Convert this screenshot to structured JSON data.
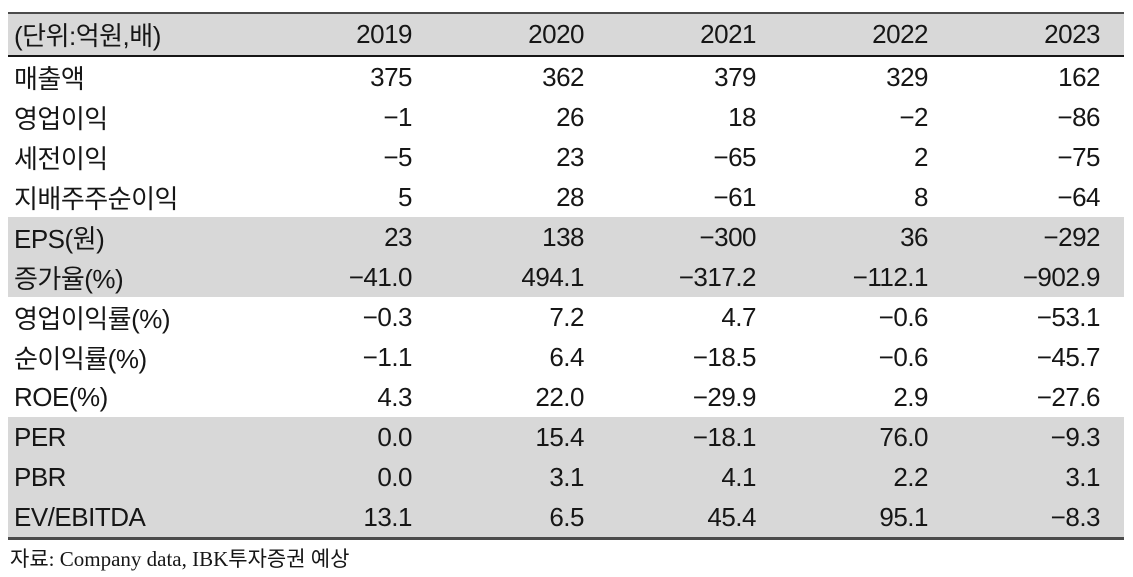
{
  "table": {
    "unit_label": "(단위:억원,배)",
    "columns": [
      "2019",
      "2020",
      "2021",
      "2022",
      "2023"
    ],
    "rows": [
      {
        "label": "매출액",
        "shaded": false,
        "values": [
          "375",
          "362",
          "379",
          "329",
          "162"
        ]
      },
      {
        "label": "영업이익",
        "shaded": false,
        "values": [
          "−1",
          "26",
          "18",
          "−2",
          "−86"
        ]
      },
      {
        "label": "세전이익",
        "shaded": false,
        "values": [
          "−5",
          "23",
          "−65",
          "2",
          "−75"
        ]
      },
      {
        "label": "지배주주순이익",
        "shaded": false,
        "values": [
          "5",
          "28",
          "−61",
          "8",
          "−64"
        ]
      },
      {
        "label": "EPS(원)",
        "shaded": true,
        "values": [
          "23",
          "138",
          "−300",
          "36",
          "−292"
        ]
      },
      {
        "label": "증가율(%)",
        "shaded": true,
        "values": [
          "−41.0",
          "494.1",
          "−317.2",
          "−112.1",
          "−902.9"
        ]
      },
      {
        "label": "영업이익률(%)",
        "shaded": false,
        "values": [
          "−0.3",
          "7.2",
          "4.7",
          "−0.6",
          "−53.1"
        ]
      },
      {
        "label": "순이익률(%)",
        "shaded": false,
        "values": [
          "−1.1",
          "6.4",
          "−18.5",
          "−0.6",
          "−45.7"
        ]
      },
      {
        "label": "ROE(%)",
        "shaded": false,
        "values": [
          "4.3",
          "22.0",
          "−29.9",
          "2.9",
          "−27.6"
        ]
      },
      {
        "label": "PER",
        "shaded": true,
        "values": [
          "0.0",
          "15.4",
          "−18.1",
          "76.0",
          "−9.3"
        ]
      },
      {
        "label": "PBR",
        "shaded": true,
        "values": [
          "0.0",
          "3.1",
          "4.1",
          "2.2",
          "3.1"
        ]
      },
      {
        "label": "EV/EBITDA",
        "shaded": true,
        "values": [
          "13.1",
          "6.5",
          "45.4",
          "95.1",
          "−8.3"
        ]
      }
    ]
  },
  "footer": {
    "source_note": "자료: Company data, IBK투자증권 예상"
  },
  "colors": {
    "row_shade": "#d8d8d8",
    "rule_dark": "#4b4b4b",
    "header_rule": "#161616",
    "text": "#161616"
  }
}
